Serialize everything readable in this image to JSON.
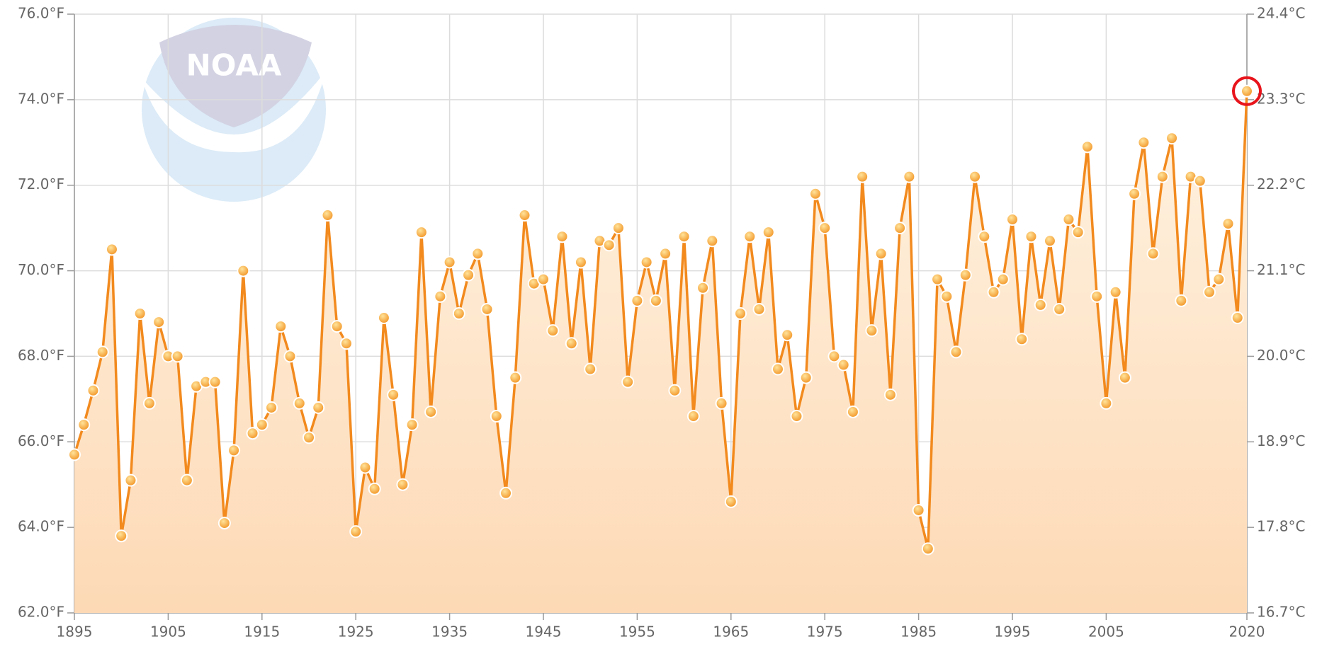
{
  "chart_data": {
    "type": "line",
    "x": [
      1895,
      1896,
      1897,
      1898,
      1899,
      1900,
      1901,
      1902,
      1903,
      1904,
      1905,
      1906,
      1907,
      1908,
      1909,
      1910,
      1911,
      1912,
      1913,
      1914,
      1915,
      1916,
      1917,
      1918,
      1919,
      1920,
      1921,
      1922,
      1923,
      1924,
      1925,
      1926,
      1927,
      1928,
      1929,
      1930,
      1931,
      1932,
      1933,
      1934,
      1935,
      1936,
      1937,
      1938,
      1939,
      1940,
      1941,
      1942,
      1943,
      1944,
      1945,
      1946,
      1947,
      1948,
      1949,
      1950,
      1951,
      1952,
      1953,
      1954,
      1955,
      1956,
      1957,
      1958,
      1959,
      1960,
      1961,
      1962,
      1963,
      1964,
      1965,
      1966,
      1967,
      1968,
      1969,
      1970,
      1971,
      1972,
      1973,
      1974,
      1975,
      1976,
      1977,
      1978,
      1979,
      1980,
      1981,
      1982,
      1983,
      1984,
      1985,
      1986,
      1987,
      1988,
      1989,
      1990,
      1991,
      1992,
      1993,
      1994,
      1995,
      1996,
      1997,
      1998,
      1999,
      2000,
      2001,
      2002,
      2003,
      2004,
      2005,
      2006,
      2007,
      2008,
      2009,
      2010,
      2011,
      2012,
      2013,
      2014,
      2015,
      2016,
      2017,
      2018,
      2019,
      2020
    ],
    "series": [
      {
        "color": "#f28a1e",
        "values": [
          65.7,
          66.4,
          67.2,
          68.1,
          70.5,
          63.8,
          65.1,
          69.0,
          66.9,
          68.8,
          68.0,
          68.0,
          65.1,
          67.3,
          67.4,
          67.4,
          64.1,
          65.8,
          70.0,
          66.2,
          66.4,
          66.8,
          68.7,
          68.0,
          66.9,
          66.1,
          66.8,
          71.3,
          68.7,
          68.3,
          63.9,
          65.4,
          64.9,
          68.9,
          67.1,
          65.0,
          66.4,
          70.9,
          66.7,
          69.4,
          70.2,
          69.0,
          69.9,
          70.4,
          69.1,
          66.6,
          64.8,
          67.5,
          71.3,
          69.7,
          69.8,
          68.6,
          70.8,
          68.3,
          70.2,
          67.7,
          70.7,
          70.6,
          71.0,
          67.4,
          69.3,
          70.2,
          69.3,
          70.4,
          67.2,
          70.8,
          66.6,
          69.6,
          70.7,
          66.9,
          64.6,
          69.0,
          70.8,
          69.1,
          70.9,
          67.7,
          68.5,
          66.6,
          67.5,
          71.8,
          71.0,
          68.0,
          67.8,
          66.7,
          72.2,
          68.6,
          70.4,
          67.1,
          71.0,
          72.2,
          64.4,
          63.5,
          69.8,
          69.4,
          68.1,
          69.9,
          72.2,
          70.8,
          69.5,
          69.8,
          71.2,
          68.4,
          70.8,
          69.2,
          70.7,
          69.1,
          71.2,
          70.9,
          72.9,
          69.4,
          66.9,
          69.5,
          67.5,
          71.8,
          73.0,
          70.4,
          72.2,
          73.1,
          69.3,
          72.2,
          72.1,
          69.5,
          69.8,
          71.1,
          68.9,
          74.2
        ]
      }
    ],
    "xlim": [
      1895,
      2020
    ],
    "xticks": [
      1895,
      1905,
      1915,
      1925,
      1935,
      1945,
      1955,
      1965,
      1975,
      1985,
      1995,
      2005,
      2020
    ],
    "ylim": [
      62,
      76
    ],
    "yticks": [
      {
        "value": 62,
        "label": "62.0°F"
      },
      {
        "value": 64,
        "label": "64.0°F"
      },
      {
        "value": 66,
        "label": "66.0°F"
      },
      {
        "value": 68,
        "label": "68.0°F"
      },
      {
        "value": 70,
        "label": "70.0°F"
      },
      {
        "value": 72,
        "label": "72.0°F"
      },
      {
        "value": 74,
        "label": "74.0°F"
      },
      {
        "value": 76,
        "label": "76.0°F"
      }
    ],
    "y2lim": [
      16.67,
      24.44
    ],
    "y2ticks": [
      {
        "value": 16.67,
        "label": "16.7°C"
      },
      {
        "value": 17.78,
        "label": "17.8°C"
      },
      {
        "value": 18.89,
        "label": "18.9°C"
      },
      {
        "value": 20,
        "label": "20.0°C"
      },
      {
        "value": 21.11,
        "label": "21.1°C"
      },
      {
        "value": 22.22,
        "label": "22.2°C"
      },
      {
        "value": 23.33,
        "label": "23.3°C"
      },
      {
        "value": 24.44,
        "label": "24.4°C"
      }
    ],
    "grid": true
  }
}
